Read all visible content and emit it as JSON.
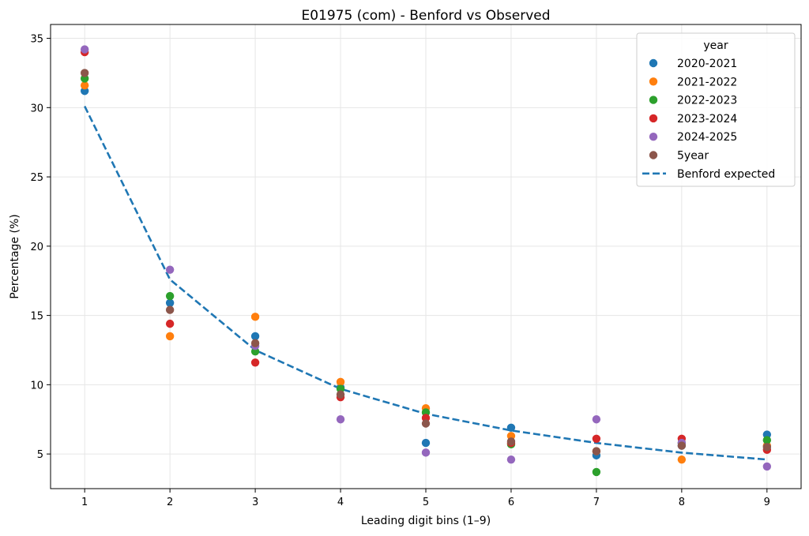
{
  "chart_data": {
    "type": "scatter",
    "title": "E01975 (com) - Benford vs Observed",
    "xlabel": "Leading digit bins (1–9)",
    "ylabel": "Percentage (%)",
    "x": [
      1,
      2,
      3,
      4,
      5,
      6,
      7,
      8,
      9
    ],
    "xlim": [
      0.6,
      9.4
    ],
    "ylim": [
      2.5,
      36
    ],
    "xticks": [
      "1",
      "2",
      "3",
      "4",
      "5",
      "6",
      "7",
      "8",
      "9"
    ],
    "yticks": [
      "5",
      "10",
      "15",
      "20",
      "25",
      "30",
      "35"
    ],
    "grid": true,
    "legend": {
      "title": "year",
      "placement": "top-right"
    },
    "series": [
      {
        "name": "2020-2021",
        "color": "#1f77b4",
        "values": [
          31.2,
          15.9,
          13.5,
          9.8,
          5.8,
          6.9,
          4.9,
          5.6,
          6.4
        ]
      },
      {
        "name": "2021-2022",
        "color": "#ff7f0e",
        "values": [
          31.6,
          13.5,
          14.9,
          10.2,
          8.3,
          6.3,
          5.2,
          4.6,
          5.6
        ]
      },
      {
        "name": "2022-2023",
        "color": "#2ca02c",
        "values": [
          32.1,
          16.4,
          12.4,
          9.7,
          8.0,
          5.7,
          3.7,
          5.8,
          6.0
        ]
      },
      {
        "name": "2023-2024",
        "color": "#d62728",
        "values": [
          34.0,
          14.4,
          11.6,
          9.1,
          7.6,
          5.8,
          6.1,
          6.1,
          5.3
        ]
      },
      {
        "name": "2024-2025",
        "color": "#9467bd",
        "values": [
          34.2,
          18.3,
          12.8,
          7.5,
          5.1,
          4.6,
          7.5,
          5.8,
          4.1
        ]
      },
      {
        "name": "5year",
        "color": "#8c564b",
        "values": [
          32.5,
          15.4,
          13.0,
          9.3,
          7.2,
          5.9,
          5.2,
          5.6,
          5.5
        ]
      }
    ],
    "benford": {
      "name": "Benford expected",
      "color": "#1f77b4",
      "values": [
        30.1,
        17.6,
        12.5,
        9.7,
        7.9,
        6.7,
        5.8,
        5.1,
        4.6
      ]
    }
  }
}
